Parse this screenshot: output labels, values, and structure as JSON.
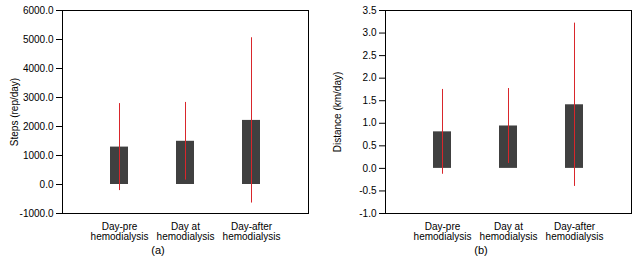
{
  "chart_data": [
    {
      "type": "bar",
      "categories": [
        "Day-pre hemodialysis",
        "Day at hemodialysis",
        "Day-after hemodialysis"
      ],
      "values": [
        1290,
        1490,
        2210
      ],
      "error": [
        1500,
        1340,
        2850
      ],
      "color": "#404040",
      "y_label": "Steps (rep/day)",
      "caption": "(a)",
      "ylim": [
        -1000,
        6000
      ],
      "yticks": [
        {
          "value": -1000,
          "label": "-1000.0"
        },
        {
          "value": 0,
          "label": "0.0"
        },
        {
          "value": 1000,
          "label": "1000.0"
        },
        {
          "value": 2000,
          "label": "2000.0"
        },
        {
          "value": 3000,
          "label": "3000.0"
        },
        {
          "value": 4000,
          "label": "4000.0"
        },
        {
          "value": 5000,
          "label": "5000.0"
        },
        {
          "value": 6000,
          "label": "6000.0"
        }
      ],
      "grid": false
    },
    {
      "type": "bar",
      "categories": [
        "Day-pre hemodialysis",
        "Day at hemodialysis",
        "Day-after hemodialysis"
      ],
      "values": [
        0.81,
        0.94,
        1.41
      ],
      "error": [
        0.94,
        0.83,
        1.81
      ],
      "color": "#404040",
      "y_label": "Distance (km/day)",
      "caption": "(b)",
      "ylim": [
        -1.0,
        3.5
      ],
      "yticks": [
        {
          "value": -1.0,
          "label": "-1.0"
        },
        {
          "value": -0.5,
          "label": "-0.5"
        },
        {
          "value": 0,
          "label": "0.0"
        },
        {
          "value": 0.5,
          "label": "0.5"
        },
        {
          "value": 1.0,
          "label": "1.0"
        },
        {
          "value": 1.5,
          "label": "1.5"
        },
        {
          "value": 2.0,
          "label": "2.0"
        },
        {
          "value": 2.5,
          "label": "2.5"
        },
        {
          "value": 3.0,
          "label": "3.0"
        },
        {
          "value": 3.5,
          "label": "3.5"
        }
      ],
      "grid": false
    }
  ]
}
